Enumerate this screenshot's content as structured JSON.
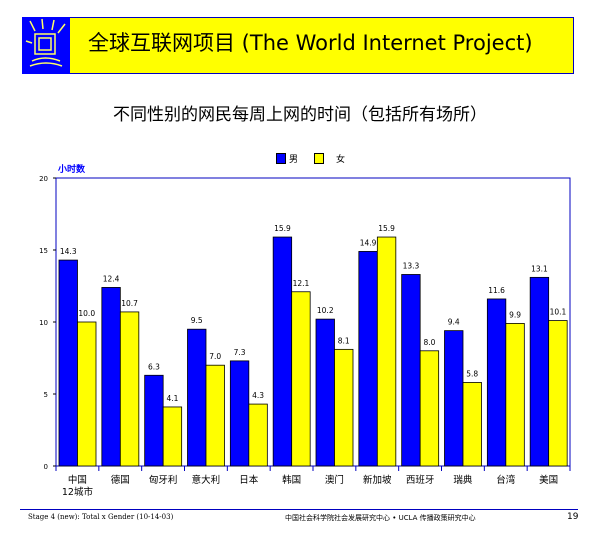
{
  "header": {
    "title": "全球互联网项目 (The World Internet Project)",
    "logo": "world-internet-project-logo"
  },
  "footer": {
    "left": "Stage 4 (new): Total x Gender (10-14-03)",
    "center": "中国社会科学院社会发展研究中心 • UCLA 传播政策研究中心",
    "page": "19"
  },
  "colors": {
    "male": "#0000ff",
    "female": "#ffff00",
    "banner": "#ffff00"
  },
  "chart_data": {
    "type": "bar",
    "title": "不同性别的网民每周上网的时间（包括所有场所）",
    "ylabel": "小时数",
    "ylim": [
      0,
      20
    ],
    "yticks": [
      0,
      5,
      10,
      15,
      20
    ],
    "legend": "top",
    "categories": [
      "中国\n12城市",
      "德国",
      "匈牙利",
      "意大利",
      "日本",
      "韩国",
      "澳门",
      "新加坡",
      "西班牙",
      "瑞典",
      "台湾",
      "美国"
    ],
    "series": [
      {
        "name": "男",
        "values": [
          14.3,
          12.4,
          6.3,
          9.5,
          7.3,
          15.9,
          10.2,
          14.9,
          13.3,
          9.4,
          11.6,
          13.1
        ]
      },
      {
        "name": "女",
        "values": [
          10.0,
          10.7,
          4.1,
          7.0,
          4.3,
          12.1,
          8.1,
          15.9,
          8.0,
          5.8,
          9.9,
          10.1
        ]
      }
    ]
  }
}
